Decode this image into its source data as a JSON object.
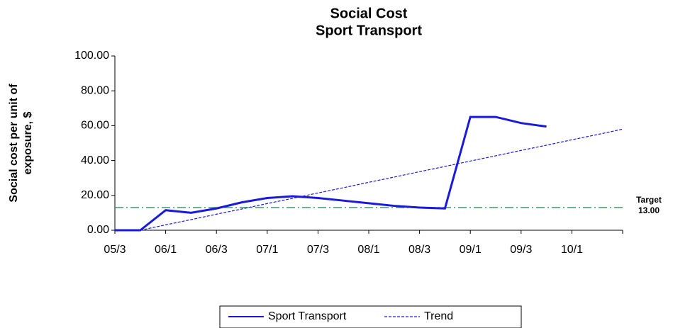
{
  "chart_data": {
    "type": "line",
    "title": [
      "Social Cost",
      "Sport Transport"
    ],
    "y_label": [
      "Social cost per unit of",
      "exposure, $"
    ],
    "categories": [
      "05/3",
      null,
      "06/1",
      null,
      "06/3",
      null,
      "07/1",
      null,
      "07/3",
      null,
      "08/1",
      null,
      "08/3",
      null,
      "09/1",
      null,
      "09/3",
      null,
      "10/1",
      null,
      null
    ],
    "series": [
      {
        "name": "Sport Transport",
        "color": "#1a1adc",
        "dash": "solid",
        "values": [
          0,
          0,
          11.5,
          10,
          12.5,
          16,
          18.5,
          19.5,
          18.5,
          17,
          15.5,
          14,
          13,
          12.5,
          65,
          65,
          61.5,
          59.5,
          null,
          null,
          null
        ]
      },
      {
        "name": "Trend",
        "color": "#1a1adc",
        "dash": "dashed",
        "values": [
          null,
          0,
          3.1,
          6.1,
          9.2,
          12.2,
          15.3,
          18.3,
          21.4,
          24.4,
          27.5,
          30.5,
          33.6,
          36.6,
          39.7,
          42.7,
          45.8,
          48.8,
          51.9,
          54.9,
          58
        ]
      }
    ],
    "target": {
      "label": "Target",
      "value": 13,
      "value_label": "13.00",
      "color": "#3a9a6a"
    },
    "ylim": [
      0,
      100
    ],
    "yticks": [
      {
        "value": 0,
        "label": "0.00"
      },
      {
        "value": 20,
        "label": "20.00"
      },
      {
        "value": 40,
        "label": "40.00"
      },
      {
        "value": 60,
        "label": "60.00"
      },
      {
        "value": 80,
        "label": "80.00"
      },
      {
        "value": 100,
        "label": "100.00"
      }
    ],
    "legend": "bottom"
  }
}
